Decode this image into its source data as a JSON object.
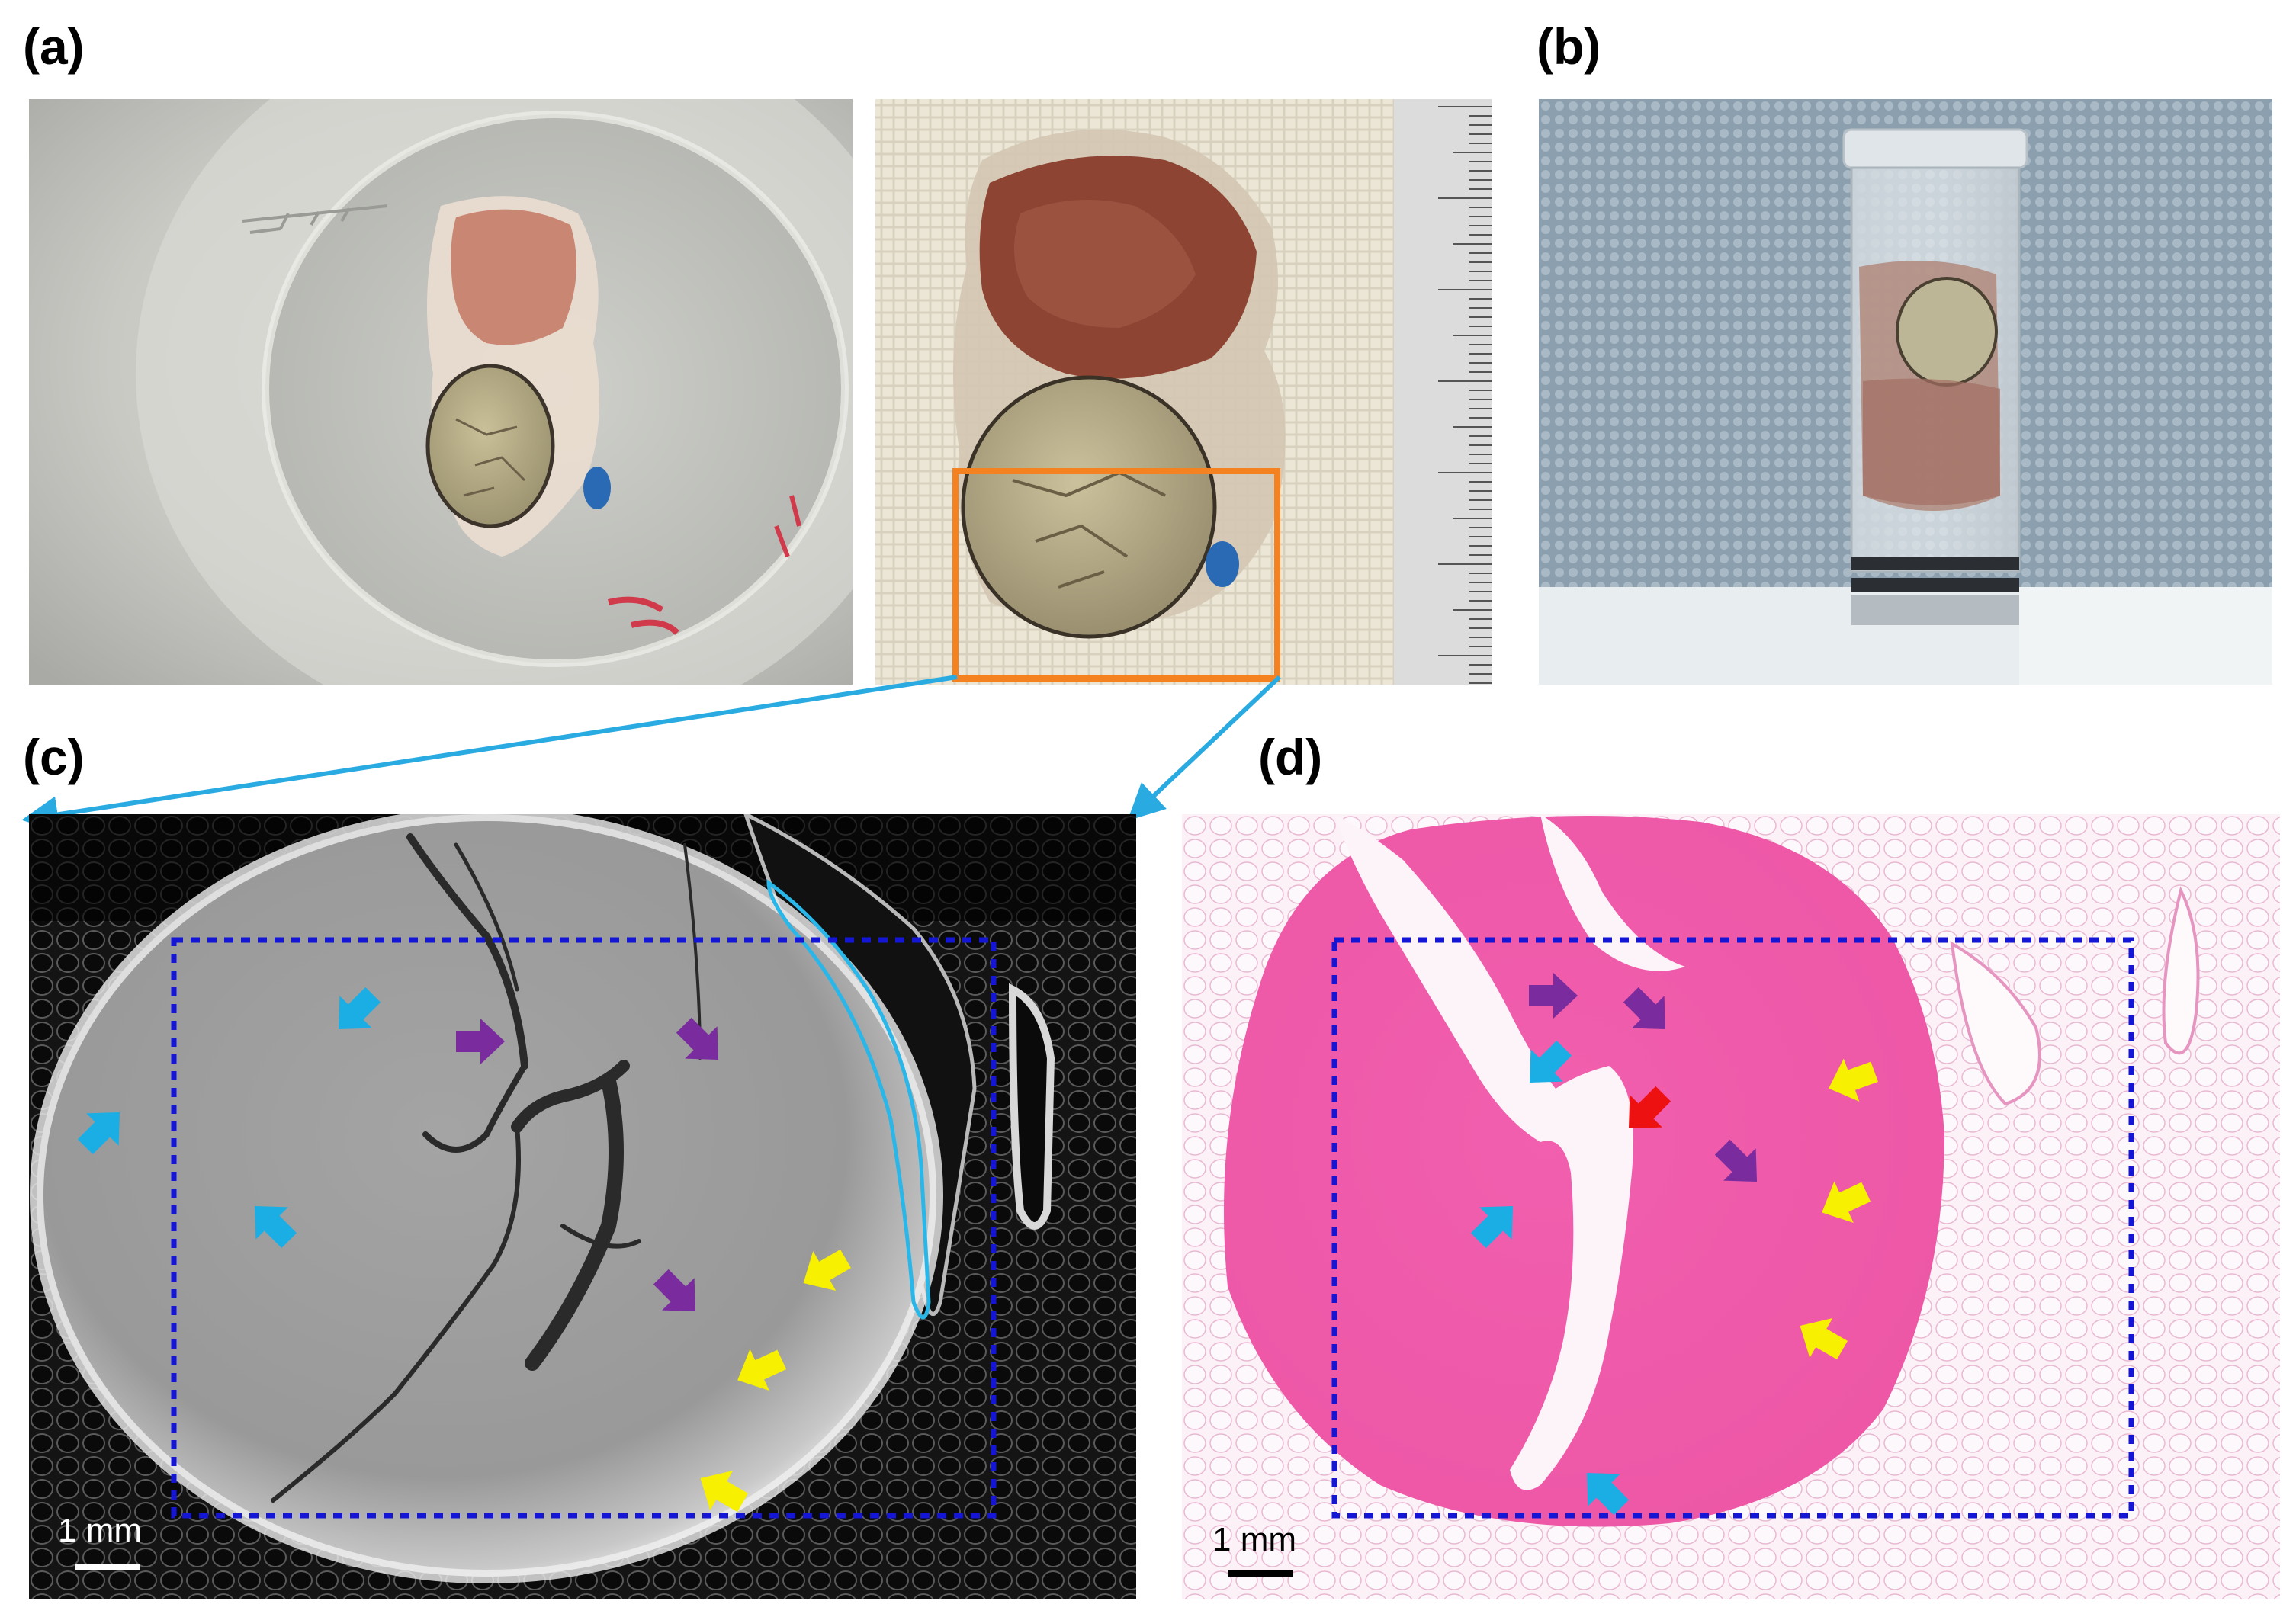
{
  "panels": {
    "a": {
      "label": "(a)"
    },
    "b": {
      "label": "(b)"
    },
    "c": {
      "label": "(c)",
      "scale_bar": "1 mm"
    },
    "d": {
      "label": "(d)",
      "scale_bar": "1 mm"
    }
  },
  "colors": {
    "zoom_box": "#f58220",
    "zoom_connector": "#29abe2",
    "roi_box": "#1515d6",
    "arrow_blue": "#1aaee5",
    "arrow_purple": "#7a2c9e",
    "arrow_yellow": "#f7f000",
    "arrow_red": "#ee1111",
    "outline_cyan": "#29b6e8"
  }
}
